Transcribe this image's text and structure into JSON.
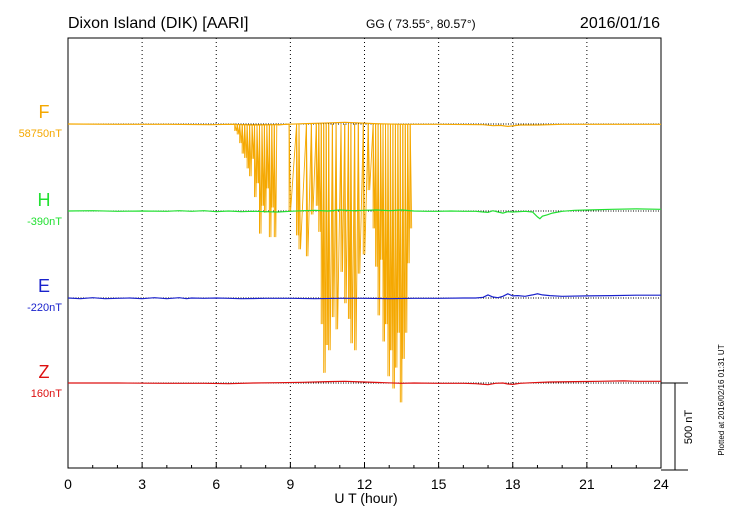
{
  "header": {
    "station": "Dixon Island (DIK)  [AARI]",
    "coords": "GG ( 73.55°,  80.57°)",
    "date": "2016/01/16"
  },
  "footer": {
    "plotted": "Plotted at 2016/02/16 01:31  UT"
  },
  "chart_data": {
    "type": "line",
    "title": "Dixon Island (DIK)  [AARI]",
    "xlabel": "U T (hour)",
    "xlim": [
      0,
      24
    ],
    "xticks": [
      "0",
      "3",
      "6",
      "9",
      "12",
      "15",
      "18",
      "21",
      "24"
    ],
    "grid": true,
    "scale_bar": {
      "label": "500 nT",
      "value_nT": 500
    },
    "series": [
      {
        "name": "F",
        "baseline_label": "58750nT",
        "color": "#f5a800",
        "points": [
          [
            0,
            0
          ],
          [
            2,
            -2
          ],
          [
            4,
            -2
          ],
          [
            5.8,
            -4
          ],
          [
            6.5,
            -2
          ],
          [
            7,
            -4
          ],
          [
            7.5,
            -6
          ],
          [
            8.5,
            -4
          ],
          [
            9.5,
            2
          ],
          [
            10.5,
            6
          ],
          [
            11.2,
            10
          ],
          [
            11.8,
            6
          ],
          [
            12.5,
            2
          ],
          [
            13.5,
            -2
          ],
          [
            15,
            -2
          ],
          [
            16.8,
            -4
          ],
          [
            17.2,
            -10
          ],
          [
            17.5,
            -8
          ],
          [
            17.8,
            -14
          ],
          [
            18.3,
            -6
          ],
          [
            19,
            -6
          ],
          [
            20,
            -2
          ],
          [
            22,
            -2
          ],
          [
            24,
            -2
          ]
        ],
        "drops": [
          [
            6.6,
            -2
          ],
          [
            6.75,
            -40
          ],
          [
            6.85,
            -60
          ],
          [
            6.95,
            -110
          ],
          [
            7.05,
            -170
          ],
          [
            7.15,
            -195
          ],
          [
            7.25,
            -255
          ],
          [
            7.35,
            -300
          ],
          [
            7.45,
            -200
          ],
          [
            7.55,
            -420
          ],
          [
            7.65,
            -340
          ],
          [
            7.75,
            -630
          ],
          [
            7.85,
            -470
          ],
          [
            7.95,
            -510
          ],
          [
            8.05,
            -370
          ],
          [
            8.15,
            -650
          ],
          [
            8.25,
            -480
          ],
          [
            8.35,
            -650
          ],
          [
            8.45,
            -6
          ],
          [
            8.95,
            -500
          ],
          [
            9.25,
            -640
          ],
          [
            9.35,
            -720
          ],
          [
            9.65,
            -760
          ],
          [
            9.85,
            -520
          ],
          [
            10.05,
            -470
          ],
          [
            10.15,
            -620
          ],
          [
            10.25,
            -1150
          ],
          [
            10.35,
            -1430
          ],
          [
            10.45,
            -1270
          ],
          [
            10.55,
            -1300
          ],
          [
            10.7,
            -1110
          ],
          [
            10.85,
            -1180
          ],
          [
            11.05,
            -850
          ],
          [
            11.2,
            -1030
          ],
          [
            11.35,
            -1120
          ],
          [
            11.45,
            -1260
          ],
          [
            11.6,
            -1300
          ],
          [
            11.75,
            -860
          ],
          [
            11.95,
            -750
          ],
          [
            12.15,
            -380
          ],
          [
            12.35,
            -600
          ],
          [
            12.45,
            -820
          ],
          [
            12.55,
            -1100
          ],
          [
            12.65,
            -780
          ],
          [
            12.75,
            -1250
          ],
          [
            12.85,
            -1150
          ],
          [
            12.95,
            -1450
          ],
          [
            13.05,
            -1300
          ],
          [
            13.15,
            -1520
          ],
          [
            13.25,
            -1400
          ],
          [
            13.35,
            -1200
          ],
          [
            13.45,
            -1600
          ],
          [
            13.55,
            -1350
          ],
          [
            13.65,
            -1200
          ],
          [
            13.75,
            -800
          ],
          [
            13.85,
            -600
          ]
        ]
      },
      {
        "name": "H",
        "baseline_label": "-390nT",
        "color": "#22e032",
        "points": [
          [
            0,
            0
          ],
          [
            1,
            2
          ],
          [
            2,
            -2
          ],
          [
            3,
            0
          ],
          [
            4,
            -2
          ],
          [
            4.5,
            2
          ],
          [
            5,
            -2
          ],
          [
            5.5,
            2
          ],
          [
            6,
            -4
          ],
          [
            6.5,
            0
          ],
          [
            7,
            -4
          ],
          [
            7.5,
            -2
          ],
          [
            8,
            -4
          ],
          [
            8.5,
            -6
          ],
          [
            9,
            -2
          ],
          [
            9.5,
            2
          ],
          [
            10,
            4
          ],
          [
            10.5,
            0
          ],
          [
            11,
            6
          ],
          [
            11.5,
            2
          ],
          [
            12,
            4
          ],
          [
            12.5,
            6
          ],
          [
            13,
            2
          ],
          [
            13.5,
            6
          ],
          [
            14,
            0
          ],
          [
            14.5,
            -2
          ],
          [
            15,
            -2
          ],
          [
            15.5,
            0
          ],
          [
            16,
            -2
          ],
          [
            16.5,
            -2
          ],
          [
            16.8,
            -6
          ],
          [
            17,
            -8
          ],
          [
            17.2,
            2
          ],
          [
            17.4,
            -6
          ],
          [
            17.6,
            -12
          ],
          [
            17.8,
            -4
          ],
          [
            18,
            -6
          ],
          [
            18.5,
            -2
          ],
          [
            18.8,
            -6
          ],
          [
            19,
            -34
          ],
          [
            19.1,
            -44
          ],
          [
            19.2,
            -30
          ],
          [
            19.4,
            -22
          ],
          [
            19.6,
            -12
          ],
          [
            20,
            -2
          ],
          [
            20.5,
            4
          ],
          [
            21,
            6
          ],
          [
            22,
            10
          ],
          [
            23,
            12
          ],
          [
            24,
            10
          ]
        ]
      },
      {
        "name": "E",
        "baseline_label": "-220nT",
        "color": "#1a22cc",
        "points": [
          [
            0,
            0
          ],
          [
            0.5,
            -4
          ],
          [
            1,
            2
          ],
          [
            1.5,
            -4
          ],
          [
            2,
            -2
          ],
          [
            2.5,
            0
          ],
          [
            3,
            -4
          ],
          [
            3.5,
            2
          ],
          [
            4,
            -4
          ],
          [
            4.5,
            2
          ],
          [
            4.8,
            -4
          ],
          [
            5,
            0
          ],
          [
            5.5,
            -2
          ],
          [
            6,
            0
          ],
          [
            6.5,
            -2
          ],
          [
            7,
            -4
          ],
          [
            8,
            -2
          ],
          [
            9,
            -2
          ],
          [
            10,
            -4
          ],
          [
            11,
            -2
          ],
          [
            12,
            -2
          ],
          [
            13,
            -4
          ],
          [
            14,
            -2
          ],
          [
            15,
            -2
          ],
          [
            16,
            0
          ],
          [
            16.5,
            0
          ],
          [
            16.8,
            4
          ],
          [
            17,
            18
          ],
          [
            17.2,
            6
          ],
          [
            17.4,
            2
          ],
          [
            17.6,
            10
          ],
          [
            17.8,
            24
          ],
          [
            18,
            12
          ],
          [
            18.2,
            14
          ],
          [
            18.5,
            10
          ],
          [
            18.8,
            18
          ],
          [
            19,
            24
          ],
          [
            19.2,
            18
          ],
          [
            19.5,
            14
          ],
          [
            20,
            10
          ],
          [
            21,
            12
          ],
          [
            22,
            14
          ],
          [
            23,
            16
          ],
          [
            24,
            16
          ]
        ]
      },
      {
        "name": "Z",
        "baseline_label": "160nT",
        "color": "#dd1010",
        "points": [
          [
            0,
            0
          ],
          [
            2,
            0
          ],
          [
            4,
            -2
          ],
          [
            5.5,
            -2
          ],
          [
            6.5,
            -4
          ],
          [
            7.5,
            0
          ],
          [
            8.5,
            2
          ],
          [
            9.5,
            4
          ],
          [
            10.5,
            8
          ],
          [
            11.2,
            10
          ],
          [
            12,
            6
          ],
          [
            12.8,
            2
          ],
          [
            13.5,
            -2
          ],
          [
            14,
            0
          ],
          [
            15,
            -2
          ],
          [
            16,
            -2
          ],
          [
            16.5,
            -4
          ],
          [
            17,
            -10
          ],
          [
            17.3,
            -2
          ],
          [
            17.6,
            0
          ],
          [
            17.8,
            -6
          ],
          [
            18,
            -8
          ],
          [
            18.3,
            -2
          ],
          [
            18.8,
            2
          ],
          [
            19.5,
            6
          ],
          [
            20.5,
            8
          ],
          [
            21.5,
            10
          ],
          [
            22.5,
            12
          ],
          [
            23,
            10
          ],
          [
            24,
            10
          ]
        ]
      }
    ]
  }
}
